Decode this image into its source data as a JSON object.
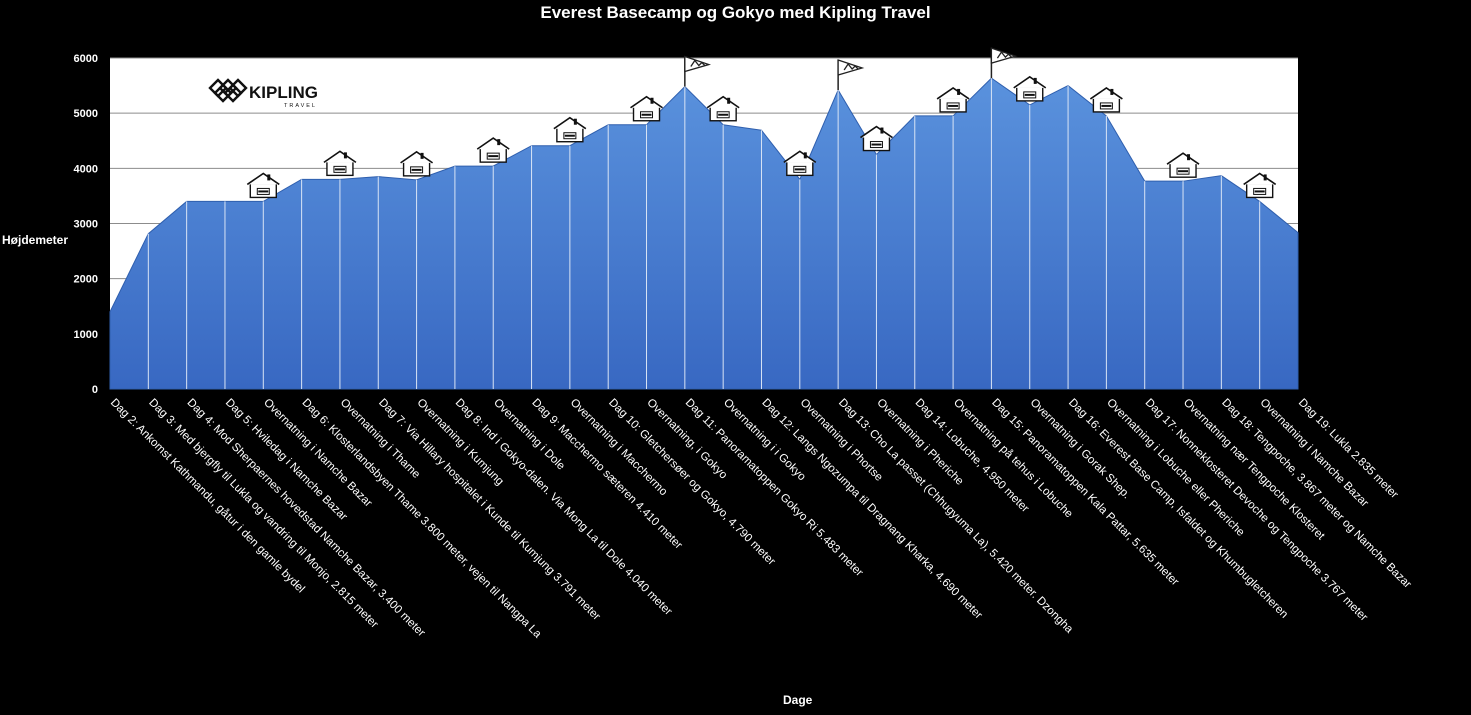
{
  "chart_data": {
    "type": "area",
    "title": "Everest Basecamp og Gokyo med Kipling Travel",
    "xlabel": "Dage",
    "ylabel": "Højdemeter",
    "ylim": [
      0,
      6000
    ],
    "yticks": [
      0,
      1000,
      2000,
      3000,
      4000,
      5000,
      6000
    ],
    "grid": true,
    "fill_color": "#4a7fcf",
    "plot_bg": "#ffffff",
    "logo": {
      "name": "KIPLING",
      "sub": "TRAVEL"
    },
    "x": [
      "Dag 2: Ankomst Kathmandu, gåtur i den gamle bydel",
      "Dag 3: Med bjergfly til Lukla og vandring til Monjo, 2.815 meter",
      "Dag 4: Mod Sherpaernes hovedstad Namche Bazar, 3.400 meter",
      "Dag 5: Hviledag i Namche Bazar",
      "Overnatning i Namche Bazar",
      "Dag 6: Klosterlandsbyen Thame 3.800 meter, vejen til Nangpa La",
      "Overnatning i Thame",
      "Dag 7: Via Hillary hospitalet i Kunde til Kumjung 3.791 meter",
      "Overnatning i Kumjung",
      "Dag 8: Ind i Gokyo-dalen. Via Mong La til Dole 4.040 meter",
      "Overnatning i Dole",
      "Dag 9: Macchermo sæteren 4.410 meter",
      "Overnatning i Macchermo",
      "Dag 10: Gletchersøer og Gokyo, 4.790 meter",
      "Overnatning, i Gokyo",
      "Dag 11: Panoramatoppen Gokyo Ri 5.483 meter",
      "Overnatning i i Gokyo",
      "Dag 12: Langs Ngozumpa til Dragnang Kharka, 4.690 meter",
      "Overnatning i Phortse",
      "Dag 13: Cho La passet (Chhugyuma La), 5.420 meter. Dzongha",
      "Overnatning i Pheriche",
      "Dag 14: Lobuche, 4.950 meter",
      "Overnatning på tehus i Lobuche",
      "Dag 15: Panoramatoppen Kala Pattar, 5.635 meter",
      "Overnatning i Gorak Shep.",
      "Dag 16: Everest Base Camp, Isfaldet og Khumbugletcheren",
      "Overnatning i Lobuche eller Pheriche",
      "Dag 17: Nonneklosteret Devoche og Tengpoche 3.767 meter",
      "Overnatning nær Tengpoche Klosteret",
      "Dag 18: Tengpoche, 3.867 meter og Namche Bazar",
      "Overnatning i Namche Bazar",
      "Dag 19: Lukla 2.835 meter"
    ],
    "values": [
      1400,
      2815,
      3400,
      3400,
      3400,
      3800,
      3800,
      3850,
      3791,
      4040,
      4040,
      4410,
      4410,
      4790,
      4790,
      5483,
      4790,
      4690,
      3800,
      5420,
      4250,
      4950,
      4950,
      5635,
      5150,
      5500,
      4950,
      3767,
      3767,
      3867,
      3400,
      2835
    ],
    "markers": [
      {
        "index": 4,
        "icon": "house-icon"
      },
      {
        "index": 6,
        "icon": "house-icon"
      },
      {
        "index": 8,
        "icon": "house-icon"
      },
      {
        "index": 10,
        "icon": "house-icon"
      },
      {
        "index": 12,
        "icon": "house-icon"
      },
      {
        "index": 14,
        "icon": "house-icon"
      },
      {
        "index": 15,
        "icon": "flag-icon"
      },
      {
        "index": 16,
        "icon": "house-icon"
      },
      {
        "index": 18,
        "icon": "house-icon"
      },
      {
        "index": 19,
        "icon": "flag-icon"
      },
      {
        "index": 20,
        "icon": "house-icon"
      },
      {
        "index": 22,
        "icon": "house-icon"
      },
      {
        "index": 23,
        "icon": "flag-icon"
      },
      {
        "index": 24,
        "icon": "house-icon"
      },
      {
        "index": 26,
        "icon": "house-icon"
      },
      {
        "index": 28,
        "icon": "house-icon"
      },
      {
        "index": 30,
        "icon": "house-icon"
      }
    ]
  }
}
